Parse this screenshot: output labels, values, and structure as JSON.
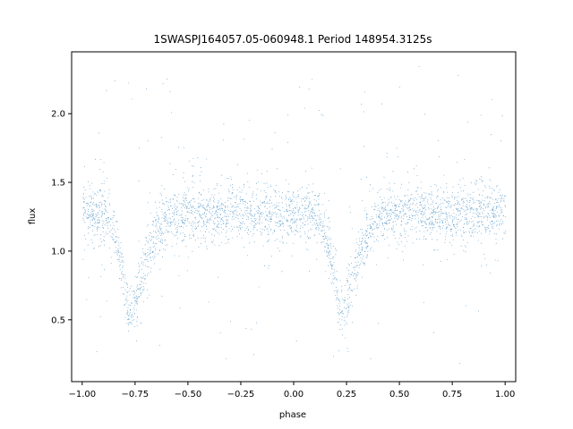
{
  "chart_data": {
    "type": "scatter",
    "title": "1SWASPJ164057.05-060948.1 Period 148954.3125s",
    "xlabel": "phase",
    "ylabel": "flux",
    "xlim": [
      -1.05,
      1.05
    ],
    "ylim": [
      0.05,
      2.45
    ],
    "x_ticks": [
      -1.0,
      -0.75,
      -0.5,
      -0.25,
      0.0,
      0.25,
      0.5,
      0.75,
      1.0
    ],
    "x_tick_labels": [
      "−1.00",
      "−0.75",
      "−0.50",
      "−0.25",
      "0.00",
      "0.25",
      "0.50",
      "0.75",
      "1.00"
    ],
    "y_ticks": [
      0.5,
      1.0,
      1.5,
      2.0
    ],
    "y_tick_labels": [
      "0.5",
      "1.0",
      "1.5",
      "2.0"
    ],
    "grid": false,
    "marker_color": "#1f77b4",
    "model": {
      "phase_range": [
        -1.0,
        1.0
      ],
      "baseline_flux": 1.28,
      "scatter_sigma": 0.09,
      "eclipses": [
        {
          "phase_center": -0.775,
          "min_flux": 0.55,
          "ingress_width": 0.055,
          "egress_width": 0.09
        },
        {
          "phase_center": 0.225,
          "min_flux": 0.55,
          "ingress_width": 0.055,
          "egress_width": 0.09
        }
      ],
      "outlier_flux_range": [
        0.18,
        2.4
      ],
      "n_points": 9000
    }
  }
}
